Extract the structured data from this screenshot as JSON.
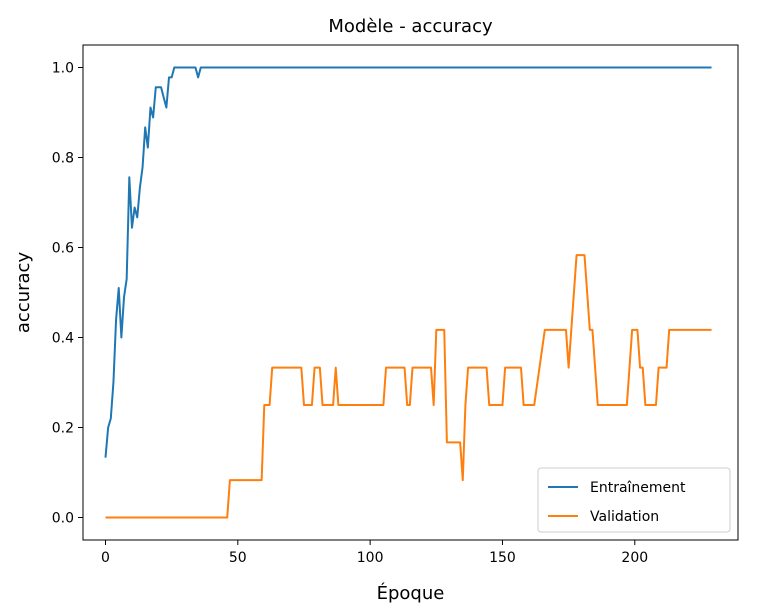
{
  "chart_data": {
    "type": "line",
    "title": "Modèle - accuracy",
    "xlabel": "Époque",
    "ylabel": "accuracy",
    "xlim": [
      -8.5,
      239
    ],
    "ylim": [
      -0.05,
      1.05
    ],
    "xticks": [
      0,
      50,
      100,
      150,
      200
    ],
    "yticks": [
      0.0,
      0.2,
      0.4,
      0.6,
      0.8,
      1.0
    ],
    "xtick_labels": [
      "0",
      "50",
      "100",
      "150",
      "200"
    ],
    "ytick_labels": [
      "0.0",
      "0.2",
      "0.4",
      "0.6",
      "0.8",
      "1.0"
    ],
    "grid": false,
    "legend_position": "lower right",
    "series": [
      {
        "name": "Entraînement",
        "color": "#1f77b4",
        "points": [
          [
            0,
            0.133
          ],
          [
            1,
            0.2
          ],
          [
            2,
            0.22
          ],
          [
            3,
            0.3
          ],
          [
            4,
            0.44
          ],
          [
            5,
            0.51
          ],
          [
            6,
            0.4
          ],
          [
            7,
            0.49
          ],
          [
            8,
            0.53
          ],
          [
            9,
            0.756
          ],
          [
            10,
            0.644
          ],
          [
            11,
            0.689
          ],
          [
            12,
            0.667
          ],
          [
            13,
            0.733
          ],
          [
            14,
            0.778
          ],
          [
            15,
            0.867
          ],
          [
            16,
            0.822
          ],
          [
            17,
            0.911
          ],
          [
            18,
            0.889
          ],
          [
            19,
            0.956
          ],
          [
            20,
            0.956
          ],
          [
            21,
            0.956
          ],
          [
            22,
            0.933
          ],
          [
            23,
            0.911
          ],
          [
            24,
            0.978
          ],
          [
            25,
            0.978
          ],
          [
            26,
            1.0
          ],
          [
            34,
            1.0
          ],
          [
            35,
            0.978
          ],
          [
            36,
            1.0
          ],
          [
            229,
            1.0
          ]
        ]
      },
      {
        "name": "Validation",
        "color": "#ff7f0e",
        "points": [
          [
            0,
            0.0
          ],
          [
            46,
            0.0
          ],
          [
            47,
            0.083
          ],
          [
            59,
            0.083
          ],
          [
            60,
            0.25
          ],
          [
            61,
            0.25
          ],
          [
            62,
            0.25
          ],
          [
            63,
            0.333
          ],
          [
            74,
            0.333
          ],
          [
            75,
            0.25
          ],
          [
            78,
            0.25
          ],
          [
            79,
            0.333
          ],
          [
            81,
            0.333
          ],
          [
            82,
            0.25
          ],
          [
            86,
            0.25
          ],
          [
            87,
            0.333
          ],
          [
            88,
            0.25
          ],
          [
            105,
            0.25
          ],
          [
            106,
            0.333
          ],
          [
            113,
            0.333
          ],
          [
            114,
            0.25
          ],
          [
            115,
            0.25
          ],
          [
            116,
            0.333
          ],
          [
            123,
            0.333
          ],
          [
            124,
            0.25
          ],
          [
            125,
            0.417
          ],
          [
            128,
            0.417
          ],
          [
            129,
            0.167
          ],
          [
            134,
            0.167
          ],
          [
            135,
            0.083
          ],
          [
            136,
            0.25
          ],
          [
            137,
            0.333
          ],
          [
            144,
            0.333
          ],
          [
            145,
            0.25
          ],
          [
            150,
            0.25
          ],
          [
            151,
            0.333
          ],
          [
            157,
            0.333
          ],
          [
            158,
            0.25
          ],
          [
            162,
            0.25
          ],
          [
            166,
            0.417
          ],
          [
            174,
            0.417
          ],
          [
            175,
            0.333
          ],
          [
            177,
            0.5
          ],
          [
            178,
            0.583
          ],
          [
            181,
            0.583
          ],
          [
            183,
            0.417
          ],
          [
            184,
            0.417
          ],
          [
            186,
            0.25
          ],
          [
            197,
            0.25
          ],
          [
            198,
            0.333
          ],
          [
            199,
            0.417
          ],
          [
            201,
            0.417
          ],
          [
            202,
            0.333
          ],
          [
            203,
            0.333
          ],
          [
            204,
            0.25
          ],
          [
            208,
            0.25
          ],
          [
            209,
            0.333
          ],
          [
            212,
            0.333
          ],
          [
            213,
            0.417
          ],
          [
            229,
            0.417
          ]
        ]
      }
    ]
  }
}
